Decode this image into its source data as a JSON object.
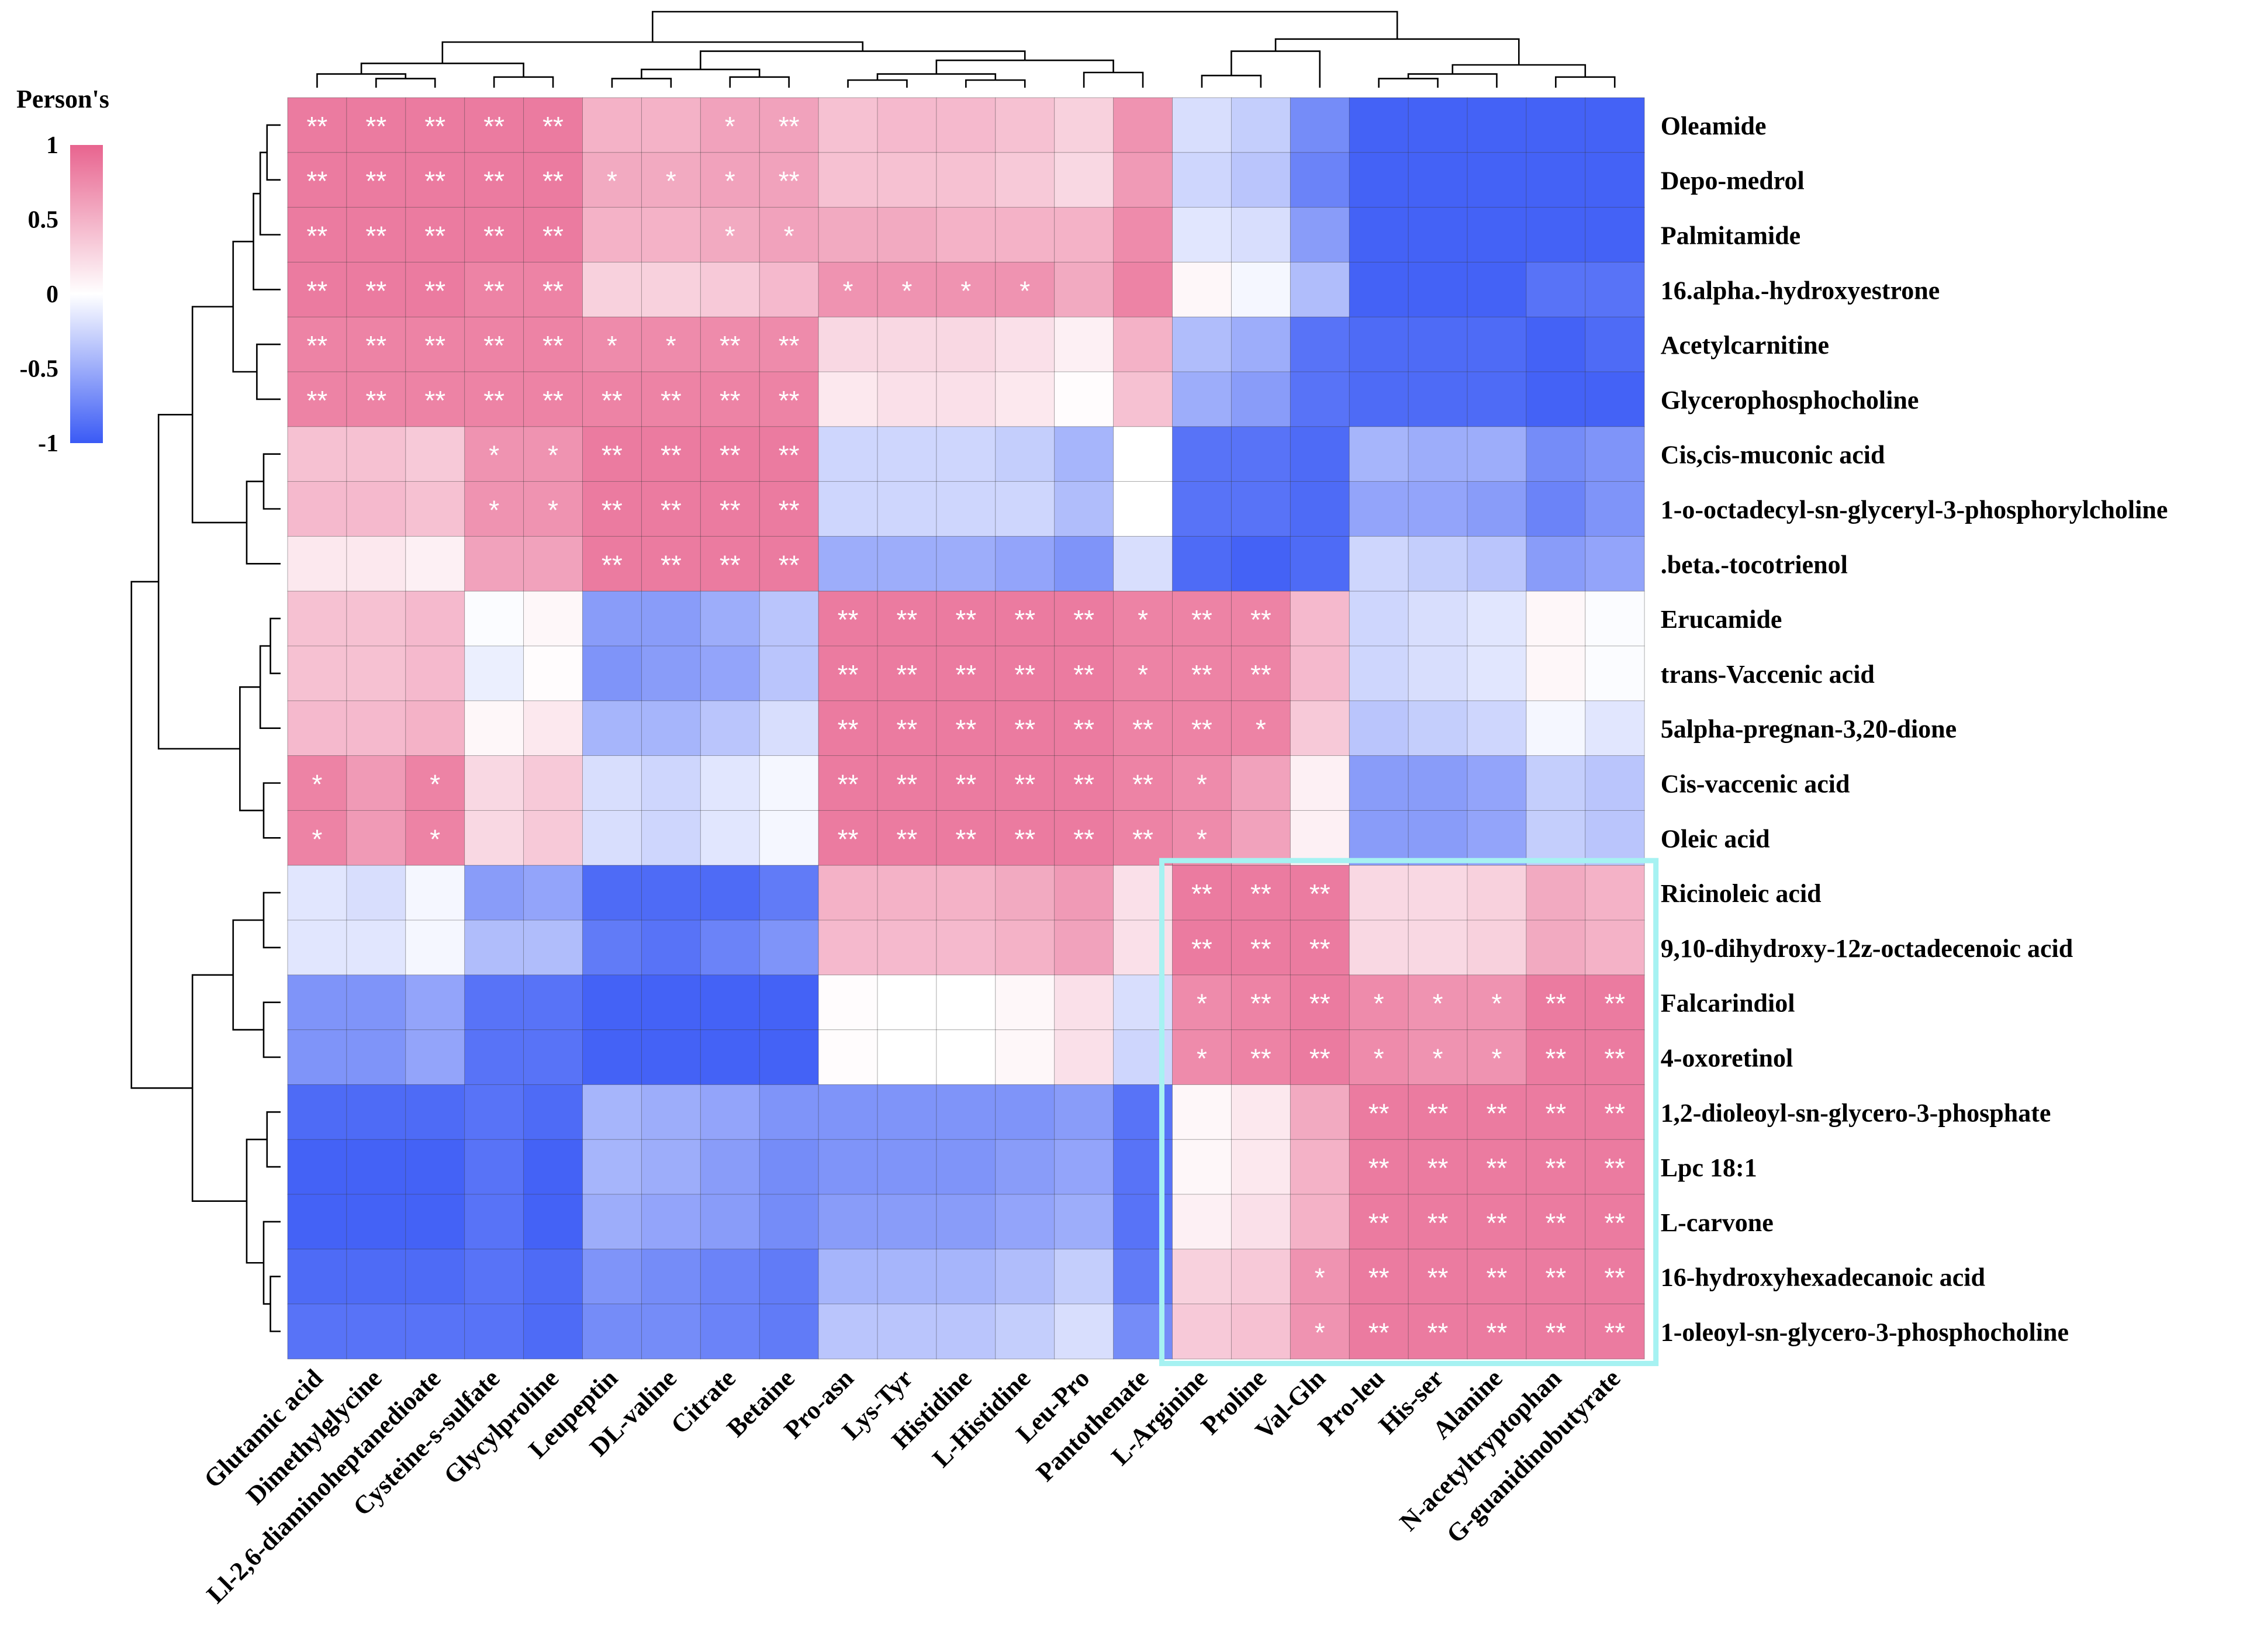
{
  "chart_data": {
    "type": "heatmap",
    "title": "",
    "legend": {
      "title": "Person's",
      "ticks": [
        {
          "label": "1",
          "value": 1
        },
        {
          "label": "0.5",
          "value": 0.5
        },
        {
          "label": "0",
          "value": 0
        },
        {
          "label": "-0.5",
          "value": -0.5
        },
        {
          "label": "-1",
          "value": -1
        }
      ],
      "range": [
        -1,
        1
      ],
      "placement": "top-left"
    },
    "colors": {
      "low": "#3a5af5",
      "mid": "#ffffff",
      "high": "#e8648f",
      "highlight_box": "#a6f2f2"
    },
    "columns": [
      "Glutamic acid",
      "Dimethylglycine",
      "Ll-2,6-diaminoheptanedioate",
      "Cysteine-s-sulfate",
      "Glycylproline",
      "Leupeptin",
      "DL-valine",
      "Citrate",
      "Betaine",
      "Pro-asn",
      "Lys-Tyr",
      "Histidine",
      "L-Histidine",
      "Leu-Pro",
      "Pantothenate",
      "L-Arginine",
      "Proline",
      "Val-Gln",
      "Pro-leu",
      "His-ser",
      "Alanine",
      "N-acetyltryptophan",
      "G-guanidinobutyrate"
    ],
    "rows": [
      "Oleamide",
      "Depo-medrol",
      "Palmitamide",
      "16.alpha.-hydroxyestrone",
      "Acetylcarnitine",
      "Glycerophosphocholine",
      "Cis,cis-muconic acid",
      "1-o-octadecyl-sn-glyceryl-3-phosphorylcholine",
      ".beta.-tocotrienol",
      "Erucamide",
      "trans-Vaccenic acid",
      "5alpha-pregnan-3,20-dione",
      "Cis-vaccenic acid",
      "Oleic acid",
      "Ricinoleic acid",
      "9,10-dihydroxy-12z-octadecenoic acid",
      "Falcarindiol",
      "4-oxoretinol",
      "1,2-dioleoyl-sn-glycero-3-phosphate",
      "Lpc 18:1",
      "L-carvone",
      "16-hydroxyhexadecanoic acid",
      "1-oleoyl-sn-glycero-3-phosphocholine"
    ],
    "values": [
      [
        0.85,
        0.85,
        0.85,
        0.85,
        0.85,
        0.5,
        0.5,
        0.6,
        0.6,
        0.4,
        0.45,
        0.45,
        0.4,
        0.3,
        0.7,
        -0.2,
        -0.3,
        -0.7,
        -0.95,
        -0.95,
        -0.95,
        -0.95,
        -0.95
      ],
      [
        0.85,
        0.85,
        0.85,
        0.85,
        0.85,
        0.55,
        0.55,
        0.6,
        0.6,
        0.4,
        0.4,
        0.4,
        0.35,
        0.25,
        0.65,
        -0.25,
        -0.35,
        -0.75,
        -0.95,
        -0.95,
        -0.95,
        -0.95,
        -0.95
      ],
      [
        0.85,
        0.85,
        0.85,
        0.85,
        0.85,
        0.5,
        0.5,
        0.55,
        0.6,
        0.55,
        0.55,
        0.5,
        0.5,
        0.5,
        0.75,
        -0.15,
        -0.2,
        -0.6,
        -0.95,
        -0.95,
        -0.95,
        -0.95,
        -0.95
      ],
      [
        0.85,
        0.85,
        0.85,
        0.8,
        0.8,
        0.3,
        0.3,
        0.35,
        0.45,
        0.7,
        0.7,
        0.7,
        0.7,
        0.55,
        0.8,
        0.05,
        -0.05,
        -0.4,
        -0.95,
        -0.95,
        -0.95,
        -0.85,
        -0.85
      ],
      [
        0.8,
        0.8,
        0.8,
        0.8,
        0.8,
        0.75,
        0.75,
        0.75,
        0.75,
        0.25,
        0.25,
        0.25,
        0.2,
        0.1,
        0.5,
        -0.4,
        -0.5,
        -0.85,
        -0.9,
        -0.9,
        -0.9,
        -0.95,
        -0.9
      ],
      [
        0.8,
        0.8,
        0.8,
        0.8,
        0.8,
        0.8,
        0.8,
        0.8,
        0.8,
        0.15,
        0.2,
        0.2,
        0.15,
        0.02,
        0.4,
        -0.5,
        -0.6,
        -0.85,
        -0.9,
        -0.9,
        -0.9,
        -0.95,
        -0.95
      ],
      [
        0.4,
        0.4,
        0.35,
        0.7,
        0.7,
        0.85,
        0.85,
        0.85,
        0.85,
        -0.25,
        -0.25,
        -0.25,
        -0.3,
        -0.45,
        0.0,
        -0.85,
        -0.85,
        -0.9,
        -0.45,
        -0.5,
        -0.5,
        -0.7,
        -0.65
      ],
      [
        0.45,
        0.45,
        0.4,
        0.7,
        0.7,
        0.85,
        0.85,
        0.85,
        0.85,
        -0.25,
        -0.25,
        -0.25,
        -0.25,
        -0.4,
        0.0,
        -0.85,
        -0.85,
        -0.9,
        -0.55,
        -0.55,
        -0.6,
        -0.75,
        -0.65
      ],
      [
        0.15,
        0.15,
        0.1,
        0.6,
        0.6,
        0.85,
        0.85,
        0.85,
        0.85,
        -0.5,
        -0.5,
        -0.5,
        -0.55,
        -0.65,
        -0.2,
        -0.9,
        -0.95,
        -0.9,
        -0.25,
        -0.3,
        -0.35,
        -0.6,
        -0.55
      ],
      [
        0.4,
        0.4,
        0.45,
        -0.02,
        0.05,
        -0.6,
        -0.6,
        -0.5,
        -0.35,
        0.85,
        0.85,
        0.85,
        0.85,
        0.85,
        0.8,
        0.8,
        0.8,
        0.45,
        -0.25,
        -0.2,
        -0.15,
        0.05,
        -0.02
      ],
      [
        0.4,
        0.4,
        0.45,
        -0.1,
        0.02,
        -0.65,
        -0.6,
        -0.55,
        -0.35,
        0.85,
        0.85,
        0.85,
        0.85,
        0.85,
        0.8,
        0.8,
        0.8,
        0.45,
        -0.25,
        -0.2,
        -0.15,
        0.05,
        -0.02
      ],
      [
        0.45,
        0.45,
        0.5,
        0.05,
        0.15,
        -0.45,
        -0.45,
        -0.35,
        -0.2,
        0.85,
        0.85,
        0.85,
        0.85,
        0.85,
        0.8,
        0.8,
        0.8,
        0.35,
        -0.35,
        -0.3,
        -0.25,
        -0.05,
        -0.15
      ],
      [
        0.8,
        0.65,
        0.8,
        0.25,
        0.35,
        -0.2,
        -0.25,
        -0.15,
        -0.05,
        0.85,
        0.85,
        0.85,
        0.85,
        0.85,
        0.8,
        0.75,
        0.6,
        0.1,
        -0.6,
        -0.6,
        -0.55,
        -0.3,
        -0.35
      ],
      [
        0.8,
        0.65,
        0.8,
        0.25,
        0.35,
        -0.2,
        -0.25,
        -0.15,
        -0.05,
        0.85,
        0.85,
        0.85,
        0.85,
        0.85,
        0.8,
        0.75,
        0.6,
        0.1,
        -0.6,
        -0.6,
        -0.55,
        -0.3,
        -0.35
      ],
      [
        -0.15,
        -0.2,
        -0.05,
        -0.6,
        -0.55,
        -0.9,
        -0.9,
        -0.9,
        -0.8,
        0.5,
        0.5,
        0.5,
        0.55,
        0.65,
        0.2,
        0.85,
        0.85,
        0.85,
        0.25,
        0.25,
        0.3,
        0.55,
        0.5
      ],
      [
        -0.15,
        -0.15,
        -0.05,
        -0.4,
        -0.4,
        -0.8,
        -0.85,
        -0.75,
        -0.65,
        0.45,
        0.45,
        0.45,
        0.5,
        0.6,
        0.2,
        0.85,
        0.85,
        0.85,
        0.25,
        0.25,
        0.3,
        0.55,
        0.5
      ],
      [
        -0.65,
        -0.65,
        -0.55,
        -0.85,
        -0.85,
        -0.95,
        -0.95,
        -0.95,
        -0.95,
        0.02,
        0.0,
        0.0,
        0.05,
        0.2,
        -0.2,
        0.75,
        0.8,
        0.85,
        0.75,
        0.7,
        0.7,
        0.85,
        0.85
      ],
      [
        -0.65,
        -0.65,
        -0.55,
        -0.85,
        -0.85,
        -0.95,
        -0.95,
        -0.95,
        -0.95,
        0.02,
        0.0,
        0.0,
        0.05,
        0.2,
        -0.25,
        0.75,
        0.8,
        0.85,
        0.75,
        0.7,
        0.7,
        0.85,
        0.85
      ],
      [
        -0.9,
        -0.9,
        -0.9,
        -0.85,
        -0.9,
        -0.45,
        -0.5,
        -0.55,
        -0.65,
        -0.65,
        -0.65,
        -0.65,
        -0.65,
        -0.6,
        -0.85,
        0.05,
        0.15,
        0.55,
        0.85,
        0.85,
        0.85,
        0.85,
        0.85
      ],
      [
        -0.95,
        -0.95,
        -0.95,
        -0.85,
        -0.95,
        -0.45,
        -0.5,
        -0.6,
        -0.7,
        -0.65,
        -0.65,
        -0.65,
        -0.6,
        -0.55,
        -0.85,
        0.05,
        0.15,
        0.5,
        0.85,
        0.85,
        0.85,
        0.85,
        0.85
      ],
      [
        -0.95,
        -0.95,
        -0.95,
        -0.85,
        -0.95,
        -0.5,
        -0.55,
        -0.6,
        -0.7,
        -0.6,
        -0.6,
        -0.6,
        -0.55,
        -0.5,
        -0.85,
        0.1,
        0.2,
        0.5,
        0.85,
        0.85,
        0.85,
        0.85,
        0.85
      ],
      [
        -0.9,
        -0.9,
        -0.9,
        -0.85,
        -0.9,
        -0.65,
        -0.7,
        -0.75,
        -0.8,
        -0.45,
        -0.45,
        -0.45,
        -0.4,
        -0.3,
        -0.8,
        0.3,
        0.35,
        0.7,
        0.85,
        0.85,
        0.85,
        0.85,
        0.85
      ],
      [
        -0.85,
        -0.85,
        -0.85,
        -0.85,
        -0.9,
        -0.7,
        -0.7,
        -0.75,
        -0.8,
        -0.35,
        -0.35,
        -0.35,
        -0.3,
        -0.2,
        -0.7,
        0.35,
        0.4,
        0.7,
        0.85,
        0.85,
        0.85,
        0.85,
        0.85
      ]
    ],
    "significance": [
      [
        "**",
        "**",
        "**",
        "**",
        "**",
        "",
        "",
        "*",
        "**",
        "",
        "",
        "",
        "",
        "",
        "",
        "",
        "",
        "",
        "",
        "",
        "",
        "",
        ""
      ],
      [
        "**",
        "**",
        "**",
        "**",
        "**",
        "*",
        "*",
        "*",
        "**",
        "",
        "",
        "",
        "",
        "",
        "",
        "",
        "",
        "",
        "",
        "",
        "",
        "",
        ""
      ],
      [
        "**",
        "**",
        "**",
        "**",
        "**",
        "",
        "",
        "*",
        "*",
        "",
        "",
        "",
        "",
        "",
        "",
        "",
        "",
        "",
        "",
        "",
        "",
        "",
        ""
      ],
      [
        "**",
        "**",
        "**",
        "**",
        "**",
        "",
        "",
        "",
        "",
        "*",
        "*",
        "*",
        "*",
        "",
        "",
        "",
        "",
        "",
        "",
        "",
        "",
        "",
        ""
      ],
      [
        "**",
        "**",
        "**",
        "**",
        "**",
        "*",
        "*",
        "**",
        "**",
        "",
        "",
        "",
        "",
        "",
        "",
        "",
        "",
        "",
        "",
        "",
        "",
        "",
        ""
      ],
      [
        "**",
        "**",
        "**",
        "**",
        "**",
        "**",
        "**",
        "**",
        "**",
        "",
        "",
        "",
        "",
        "",
        "",
        "",
        "",
        "",
        "",
        "",
        "",
        "",
        ""
      ],
      [
        "",
        "",
        "",
        "*",
        "*",
        "**",
        "**",
        "**",
        "**",
        "",
        "",
        "",
        "",
        "",
        "",
        "",
        "",
        "",
        "",
        "",
        "",
        "",
        ""
      ],
      [
        "",
        "",
        "",
        "*",
        "*",
        "**",
        "**",
        "**",
        "**",
        "",
        "",
        "",
        "",
        "",
        "",
        "",
        "",
        "",
        "",
        "",
        "",
        "",
        ""
      ],
      [
        "",
        "",
        "",
        "",
        "",
        "**",
        "**",
        "**",
        "**",
        "",
        "",
        "",
        "",
        "",
        "",
        "",
        "",
        "",
        "",
        "",
        "",
        "",
        ""
      ],
      [
        "",
        "",
        "",
        "",
        "",
        "",
        "",
        "",
        "",
        "**",
        "**",
        "**",
        "**",
        "**",
        "*",
        "**",
        "**",
        "",
        "",
        "",
        "",
        "",
        ""
      ],
      [
        "",
        "",
        "",
        "",
        "",
        "",
        "",
        "",
        "",
        "**",
        "**",
        "**",
        "**",
        "**",
        "*",
        "**",
        "**",
        "",
        "",
        "",
        "",
        "",
        ""
      ],
      [
        "",
        "",
        "",
        "",
        "",
        "",
        "",
        "",
        "",
        "**",
        "**",
        "**",
        "**",
        "**",
        "**",
        "**",
        "*",
        "",
        "",
        "",
        "",
        "",
        ""
      ],
      [
        "*",
        "",
        "*",
        "",
        "",
        "",
        "",
        "",
        "",
        "**",
        "**",
        "**",
        "**",
        "**",
        "**",
        "*",
        "",
        "",
        "",
        "",
        "",
        "",
        ""
      ],
      [
        "*",
        "",
        "*",
        "",
        "",
        "",
        "",
        "",
        "",
        "**",
        "**",
        "**",
        "**",
        "**",
        "**",
        "*",
        "",
        "",
        "",
        "",
        "",
        "",
        ""
      ],
      [
        "",
        "",
        "",
        "",
        "",
        "",
        "",
        "",
        "",
        "",
        "",
        "",
        "",
        "",
        "",
        "**",
        "**",
        "**",
        "",
        "",
        "",
        "",
        ""
      ],
      [
        "",
        "",
        "",
        "",
        "",
        "",
        "",
        "",
        "",
        "",
        "",
        "",
        "",
        "",
        "",
        "**",
        "**",
        "**",
        "",
        "",
        "",
        "",
        ""
      ],
      [
        "",
        "",
        "",
        "",
        "",
        "",
        "",
        "",
        "",
        "",
        "",
        "",
        "",
        "",
        "",
        "*",
        "**",
        "**",
        "*",
        "*",
        "*",
        "**",
        "**"
      ],
      [
        "",
        "",
        "",
        "",
        "",
        "",
        "",
        "",
        "",
        "",
        "",
        "",
        "",
        "",
        "",
        "*",
        "**",
        "**",
        "*",
        "*",
        "*",
        "**",
        "**"
      ],
      [
        "",
        "",
        "",
        "",
        "",
        "",
        "",
        "",
        "",
        "",
        "",
        "",
        "",
        "",
        "",
        "",
        "",
        "",
        "**",
        "**",
        "**",
        "**",
        "**"
      ],
      [
        "",
        "",
        "",
        "",
        "",
        "",
        "",
        "",
        "",
        "",
        "",
        "",
        "",
        "",
        "",
        "",
        "",
        "",
        "**",
        "**",
        "**",
        "**",
        "**"
      ],
      [
        "",
        "",
        "",
        "",
        "",
        "",
        "",
        "",
        "",
        "",
        "",
        "",
        "",
        "",
        "",
        "",
        "",
        "",
        "**",
        "**",
        "**",
        "**",
        "**"
      ],
      [
        "",
        "",
        "",
        "",
        "",
        "",
        "",
        "",
        "",
        "",
        "",
        "",
        "",
        "",
        "",
        "",
        "",
        "*",
        "**",
        "**",
        "**",
        "**",
        "**"
      ],
      [
        "",
        "",
        "",
        "",
        "",
        "",
        "",
        "",
        "",
        "",
        "",
        "",
        "",
        "",
        "",
        "",
        "",
        "*",
        "**",
        "**",
        "**",
        "**",
        "**"
      ]
    ],
    "highlight": {
      "rows": [
        14,
        22
      ],
      "columns": [
        15,
        22
      ]
    }
  }
}
